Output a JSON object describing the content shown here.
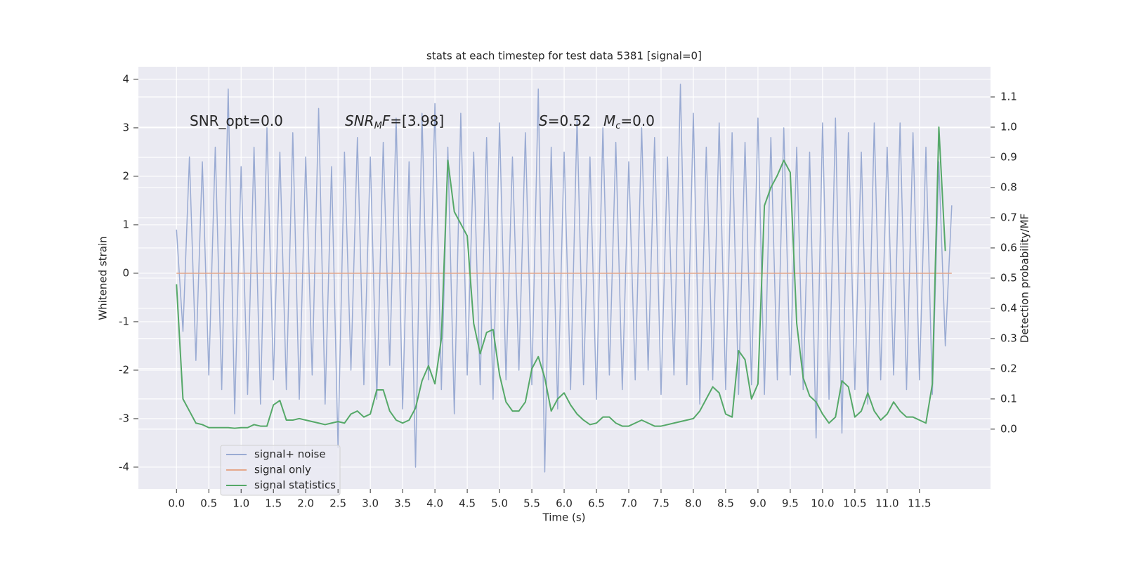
{
  "chart_data": {
    "type": "line",
    "title": "stats at each timestep for test data 5381 [signal=0]",
    "xlabel": "Time (s)",
    "ylabel": "Whitened strain",
    "y2label": "Detection probability/MF",
    "annotations": [
      [
        "SNR_opt=0.0"
      ],
      [
        "SNR",
        "M",
        "F",
        "=[3.98]"
      ],
      [
        "S",
        "=0.52",
        "M",
        "c",
        "=0.0"
      ]
    ],
    "xlim": [
      -0.59,
      12.6
    ],
    "ylim": [
      -4.45,
      4.26
    ],
    "y2lim": [
      -0.198,
      1.2
    ],
    "xticks": [
      {
        "value": 0,
        "label": "0.0"
      },
      {
        "value": 0.5,
        "label": "0.5"
      },
      {
        "value": 1,
        "label": "1.0"
      },
      {
        "value": 1.5,
        "label": "1.5"
      },
      {
        "value": 2,
        "label": "2.0"
      },
      {
        "value": 2.5,
        "label": "2.5"
      },
      {
        "value": 3,
        "label": "3.0"
      },
      {
        "value": 3.5,
        "label": "3.5"
      },
      {
        "value": 4,
        "label": "4.0"
      },
      {
        "value": 4.5,
        "label": "4.5"
      },
      {
        "value": 5,
        "label": "5.0"
      },
      {
        "value": 5.5,
        "label": "5.5"
      },
      {
        "value": 6,
        "label": "6.0"
      },
      {
        "value": 6.5,
        "label": "6.5"
      },
      {
        "value": 7,
        "label": "7.0"
      },
      {
        "value": 7.5,
        "label": "7.5"
      },
      {
        "value": 8,
        "label": "8.0"
      },
      {
        "value": 8.5,
        "label": "8.5"
      },
      {
        "value": 9,
        "label": "9.0"
      },
      {
        "value": 9.5,
        "label": "9.5"
      },
      {
        "value": 10,
        "label": "10.0"
      },
      {
        "value": 10.5,
        "label": "10.5"
      },
      {
        "value": 11,
        "label": "11.0"
      },
      {
        "value": 11.5,
        "label": "11.5"
      }
    ],
    "yticks": [
      -4,
      -3,
      -2,
      -1,
      0,
      1,
      2,
      3,
      4
    ],
    "y2ticks": [
      {
        "value": 0,
        "label": "0.0"
      },
      {
        "value": 0.1,
        "label": "0.1"
      },
      {
        "value": 0.2,
        "label": "0.2"
      },
      {
        "value": 0.3,
        "label": "0.3"
      },
      {
        "value": 0.4,
        "label": "0.4"
      },
      {
        "value": 0.5,
        "label": "0.5"
      },
      {
        "value": 0.6,
        "label": "0.6"
      },
      {
        "value": 0.7,
        "label": "0.7"
      },
      {
        "value": 0.8,
        "label": "0.8"
      },
      {
        "value": 0.9,
        "label": "0.9"
      },
      {
        "value": 1.0,
        "label": "1.0"
      },
      {
        "value": 1.1,
        "label": "1.1"
      }
    ],
    "grid": true,
    "legend": "lower left",
    "series": [
      {
        "name": "signal+ noise",
        "color": "#9aabd3",
        "x": [
          0,
          0.1,
          0.2,
          0.3,
          0.4,
          0.5,
          0.6,
          0.7,
          0.8,
          0.9,
          1,
          1.1,
          1.2,
          1.3,
          1.4,
          1.5,
          1.6,
          1.7,
          1.8,
          1.9,
          2,
          2.1,
          2.2,
          2.3,
          2.4,
          2.5,
          2.6,
          2.7,
          2.8,
          2.9,
          3,
          3.1,
          3.2,
          3.3,
          3.4,
          3.5,
          3.6,
          3.7,
          3.8,
          3.9,
          4,
          4.1,
          4.2,
          4.3,
          4.4,
          4.5,
          4.6,
          4.7,
          4.8,
          4.9,
          5,
          5.1,
          5.2,
          5.3,
          5.4,
          5.5,
          5.6,
          5.7,
          5.8,
          5.9,
          6,
          6.1,
          6.2,
          6.3,
          6.4,
          6.5,
          6.6,
          6.7,
          6.8,
          6.9,
          7,
          7.1,
          7.2,
          7.3,
          7.4,
          7.5,
          7.6,
          7.7,
          7.8,
          7.9,
          8,
          8.1,
          8.2,
          8.3,
          8.4,
          8.5,
          8.6,
          8.7,
          8.8,
          8.9,
          9,
          9.1,
          9.2,
          9.3,
          9.4,
          9.5,
          9.6,
          9.7,
          9.8,
          9.9,
          10,
          10.1,
          10.2,
          10.3,
          10.4,
          10.5,
          10.6,
          10.7,
          10.8,
          10.9,
          11,
          11.1,
          11.2,
          11.3,
          11.4,
          11.5,
          11.6,
          11.7,
          11.8,
          11.9,
          12
        ],
        "values": [
          0.9,
          -1.2,
          2.4,
          -1.8,
          2.3,
          -2.1,
          2.6,
          -2.4,
          3.8,
          -2.9,
          2.2,
          -2.5,
          2.6,
          -2.7,
          3.0,
          -2.2,
          2.5,
          -2.4,
          2.9,
          -2.6,
          2.4,
          -2.1,
          3.4,
          -2.7,
          2.2,
          -3.6,
          2.5,
          -2.0,
          2.8,
          -2.3,
          2.4,
          -2.6,
          2.7,
          -1.9,
          3.2,
          -2.8,
          2.3,
          -4.0,
          3.3,
          -2.2,
          3.5,
          -2.4,
          2.6,
          -2.9,
          3.3,
          -2.1,
          2.5,
          -2.3,
          2.8,
          -2.6,
          3.1,
          -2.2,
          2.4,
          -2.0,
          2.9,
          -2.3,
          3.8,
          -4.1,
          2.6,
          -2.8,
          2.5,
          -2.4,
          3.2,
          -2.3,
          2.4,
          -2.6,
          3.0,
          -2.1,
          2.7,
          -2.4,
          2.3,
          -2.2,
          3.0,
          -2.0,
          2.8,
          -2.5,
          2.4,
          -2.1,
          3.9,
          -2.3,
          3.3,
          -2.7,
          2.6,
          -2.2,
          3.1,
          -2.4,
          2.9,
          -2.5,
          2.7,
          -2.3,
          3.2,
          -2.5,
          2.8,
          -2.2,
          3.0,
          -2.1,
          2.6,
          -2.4,
          2.5,
          -3.4,
          3.1,
          -2.6,
          3.2,
          -3.3,
          2.9,
          -2.4,
          2.5,
          -2.7,
          3.1,
          -2.2,
          2.6,
          -2.1,
          3.1,
          -2.4,
          2.9,
          -2.2,
          2.6,
          -2.5,
          2.3,
          -1.5,
          1.4
        ]
      },
      {
        "name": "signal only",
        "color": "#e5a88b",
        "x": [
          0,
          12
        ],
        "values": [
          0,
          0
        ]
      },
      {
        "name": "signal statistics",
        "color": "#55a868",
        "axis": "y2",
        "x": [
          0,
          0.1,
          0.2,
          0.3,
          0.4,
          0.5,
          0.6,
          0.7,
          0.8,
          0.9,
          1,
          1.1,
          1.2,
          1.3,
          1.4,
          1.5,
          1.6,
          1.7,
          1.8,
          1.9,
          2,
          2.1,
          2.2,
          2.3,
          2.4,
          2.5,
          2.6,
          2.7,
          2.8,
          2.9,
          3,
          3.1,
          3.2,
          3.3,
          3.4,
          3.5,
          3.6,
          3.7,
          3.8,
          3.9,
          4,
          4.1,
          4.2,
          4.3,
          4.4,
          4.5,
          4.6,
          4.7,
          4.8,
          4.9,
          5,
          5.1,
          5.2,
          5.3,
          5.4,
          5.5,
          5.6,
          5.7,
          5.8,
          5.9,
          6,
          6.1,
          6.2,
          6.3,
          6.4,
          6.5,
          6.6,
          6.7,
          6.8,
          6.9,
          7,
          7.1,
          7.2,
          7.3,
          7.4,
          7.5,
          7.6,
          7.7,
          7.8,
          7.9,
          8,
          8.1,
          8.2,
          8.3,
          8.4,
          8.5,
          8.6,
          8.7,
          8.8,
          8.9,
          9,
          9.1,
          9.2,
          9.3,
          9.4,
          9.5,
          9.6,
          9.7,
          9.8,
          9.9,
          10,
          10.1,
          10.2,
          10.3,
          10.4,
          10.5,
          10.6,
          10.7,
          10.8,
          10.9,
          11,
          11.1,
          11.2,
          11.3,
          11.4,
          11.5,
          11.6,
          11.7,
          11.8,
          11.9
        ],
        "values": [
          0.48,
          0.1,
          0.06,
          0.02,
          0.015,
          0.005,
          0.005,
          0.005,
          0.005,
          0.003,
          0.005,
          0.005,
          0.015,
          0.01,
          0.01,
          0.08,
          0.095,
          0.03,
          0.03,
          0.035,
          0.03,
          0.025,
          0.02,
          0.015,
          0.02,
          0.025,
          0.02,
          0.05,
          0.06,
          0.04,
          0.05,
          0.13,
          0.13,
          0.06,
          0.03,
          0.02,
          0.03,
          0.07,
          0.16,
          0.21,
          0.15,
          0.3,
          0.89,
          0.72,
          0.68,
          0.64,
          0.35,
          0.25,
          0.32,
          0.33,
          0.18,
          0.09,
          0.06,
          0.06,
          0.09,
          0.2,
          0.24,
          0.17,
          0.06,
          0.1,
          0.12,
          0.08,
          0.05,
          0.03,
          0.015,
          0.02,
          0.04,
          0.04,
          0.02,
          0.01,
          0.01,
          0.02,
          0.03,
          0.02,
          0.01,
          0.01,
          0.015,
          0.02,
          0.025,
          0.03,
          0.035,
          0.06,
          0.1,
          0.14,
          0.12,
          0.05,
          0.04,
          0.26,
          0.23,
          0.1,
          0.15,
          0.74,
          0.8,
          0.84,
          0.89,
          0.85,
          0.35,
          0.17,
          0.11,
          0.09,
          0.05,
          0.02,
          0.04,
          0.16,
          0.14,
          0.04,
          0.06,
          0.12,
          0.06,
          0.03,
          0.05,
          0.09,
          0.06,
          0.04,
          0.04,
          0.03,
          0.02,
          0.15,
          1.0,
          0.59
        ]
      }
    ]
  }
}
